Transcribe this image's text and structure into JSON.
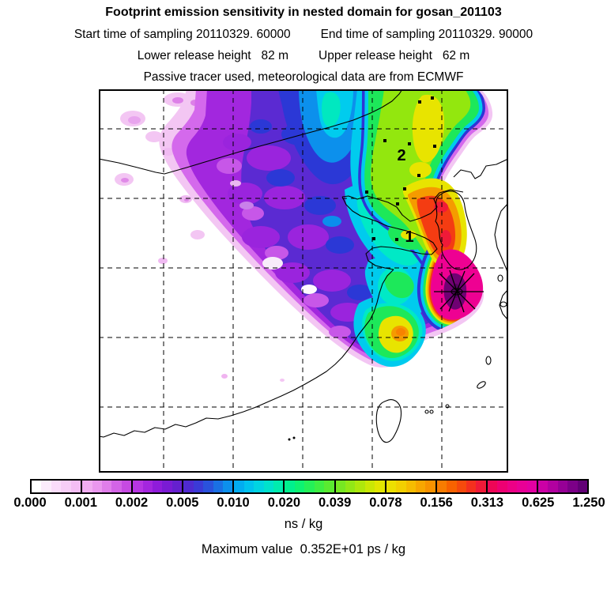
{
  "header": {
    "title": "Footprint emission sensitivity in nested domain for gosan_201103",
    "start_time": "Start time of sampling 20110329. 60000",
    "end_time": "End time of sampling 20110329. 90000",
    "lower_release": "Lower release height   82 m",
    "upper_release": "Upper release height   62 m",
    "tracer_line": "Passive tracer used, meteorological data are from ECMWF"
  },
  "colorbar": {
    "tick_labels": [
      "0.000",
      "0.001",
      "0.002",
      "0.005",
      "0.010",
      "0.020",
      "0.039",
      "0.078",
      "0.156",
      "0.313",
      "0.625",
      "1.250"
    ],
    "unit": "ns / kg",
    "segments": [
      {
        "from": "0.000",
        "to": "0.001",
        "colors": [
          "#ffffff",
          "#fcecfc",
          "#fadcfa",
          "#f7cdf7",
          "#f4bdf4"
        ]
      },
      {
        "from": "0.001",
        "to": "0.002",
        "colors": [
          "#f1adf1",
          "#ea97ee",
          "#e07eea",
          "#d364e6",
          "#c64ae2"
        ]
      },
      {
        "from": "0.002",
        "to": "0.005",
        "colors": [
          "#b735e2",
          "#a426de",
          "#8f1cda",
          "#7a1bd4",
          "#6520ce"
        ]
      },
      {
        "from": "0.005",
        "to": "0.010",
        "colors": [
          "#4f2ad0",
          "#3b3ad6",
          "#2a52dc",
          "#1a70e4",
          "#0c90ec"
        ]
      },
      {
        "from": "0.010",
        "to": "0.020",
        "colors": [
          "#02acf0",
          "#00c2ee",
          "#00d4e2",
          "#00e2cc",
          "#00ecae"
        ]
      },
      {
        "from": "0.020",
        "to": "0.039",
        "colors": [
          "#00f08e",
          "#0df272",
          "#24f058",
          "#3eee42",
          "#5aea30"
        ]
      },
      {
        "from": "0.039",
        "to": "0.078",
        "colors": [
          "#76e822",
          "#92e816",
          "#aee80c",
          "#cae804",
          "#e2e600"
        ]
      },
      {
        "from": "0.078",
        "to": "0.156",
        "colors": [
          "#ece000",
          "#f2d000",
          "#f6bc00",
          "#f8a600",
          "#f89200"
        ]
      },
      {
        "from": "0.156",
        "to": "0.313",
        "colors": [
          "#f87c00",
          "#f86200",
          "#f64a0c",
          "#f4301e",
          "#f01a38"
        ]
      },
      {
        "from": "0.313",
        "to": "0.625",
        "colors": [
          "#ee0656",
          "#ee0072",
          "#ec0086",
          "#e80096",
          "#e200a2"
        ]
      },
      {
        "from": "0.625",
        "to": "1.250",
        "colors": [
          "#cc00a6",
          "#b200a0",
          "#960096",
          "#7c0088",
          "#620076"
        ]
      }
    ]
  },
  "footer": {
    "max_value_line": "Maximum value  0.352E+01 ps / kg"
  },
  "map": {
    "markers": [
      {
        "label": "2"
      },
      {
        "label": "1"
      }
    ],
    "receptor_marker": "star"
  },
  "chart_data": {
    "type": "heatmap",
    "subtype": "filled_contour_map",
    "title": "Footprint emission sensitivity in nested domain for gosan_201103",
    "subtitles": [
      "Start time of sampling 20110329. 60000    End time of sampling 20110329. 90000",
      "Lower release height   82 m      Upper release height   62 m",
      "Passive tracer used, meteorological data are from ECMWF"
    ],
    "levels": [
      0.0,
      0.001,
      0.002,
      0.005,
      0.01,
      0.02,
      0.039,
      0.078,
      0.156,
      0.313,
      0.625,
      1.25
    ],
    "unit": "ns / kg",
    "maximum_value": "0.352E+01 ps / kg",
    "legend_position": "bottom",
    "grid": "dashed lat/lon graticule, 5 x 5",
    "region": "East Asia: NE China, Mongolia border, Korea, Japan, Taiwan",
    "receptor": {
      "site": "gosan (Jeju)",
      "marker": "star",
      "value_band": ">1.250 (dark purple core)"
    },
    "numbered_site_labels": [
      "1",
      "2"
    ],
    "plume_summary": "Sensitivity maximum (magenta/dark purple) at Gosan receptor; red-orange-yellow band along Korean west coast and Yellow Sea; green-yellow lobe over NE China; blue-violet-purple plume spreading far northwest, fading to pale pink at edges; secondary yellow/orange lobe south near 30N"
  }
}
